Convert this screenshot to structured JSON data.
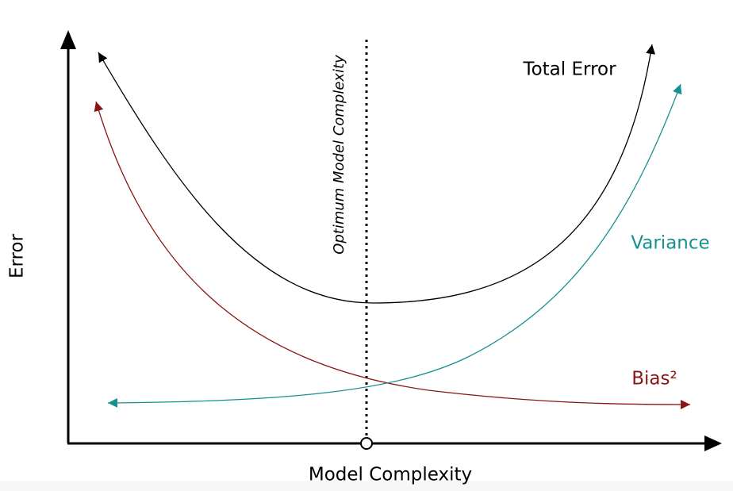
{
  "axes": {
    "y_label": "Error",
    "x_label": "Model Complexity"
  },
  "annotation": "Optimum Model Complexity",
  "curves": [
    {
      "label": "Total Error"
    },
    {
      "label": "Variance"
    },
    {
      "label": "Bias²"
    }
  ]
}
